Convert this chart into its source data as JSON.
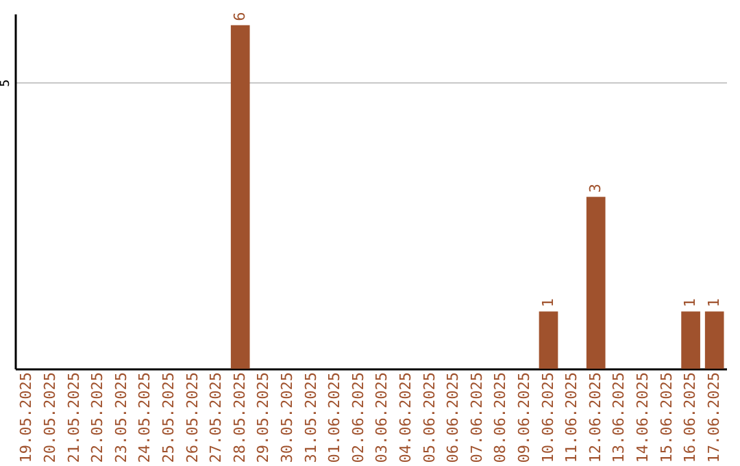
{
  "chart_data": {
    "type": "bar",
    "categories": [
      "19.05.2025",
      "20.05.2025",
      "21.05.2025",
      "22.05.2025",
      "23.05.2025",
      "24.05.2025",
      "25.05.2025",
      "26.05.2025",
      "27.05.2025",
      "28.05.2025",
      "29.05.2025",
      "30.05.2025",
      "31.05.2025",
      "01.06.2025",
      "02.06.2025",
      "03.06.2025",
      "04.06.2025",
      "05.06.2025",
      "06.06.2025",
      "07.06.2025",
      "08.06.2025",
      "09.06.2025",
      "10.06.2025",
      "11.06.2025",
      "12.06.2025",
      "13.06.2025",
      "14.06.2025",
      "15.06.2025",
      "16.06.2025",
      "17.06.2025"
    ],
    "values": [
      0,
      0,
      0,
      0,
      0,
      0,
      0,
      0,
      0,
      6,
      0,
      0,
      0,
      0,
      0,
      0,
      0,
      0,
      0,
      0,
      0,
      0,
      1,
      0,
      3,
      0,
      0,
      0,
      1,
      1
    ],
    "value_labels": [
      null,
      null,
      null,
      null,
      null,
      null,
      null,
      null,
      null,
      "6",
      null,
      null,
      null,
      null,
      null,
      null,
      null,
      null,
      null,
      null,
      null,
      null,
      "1",
      null,
      "3",
      null,
      null,
      null,
      "1",
      "1"
    ],
    "color": "#a0522d",
    "ylim": [
      0,
      6.2
    ],
    "yticks": [
      5
    ],
    "grid": "y"
  }
}
